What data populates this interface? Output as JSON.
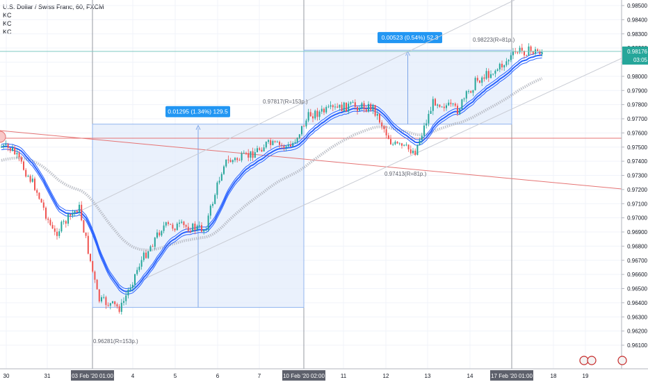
{
  "header": {
    "title": "U.S. Dollar / Swiss Franc, 60, FXCM",
    "indicators": [
      "KC",
      "KC",
      "KC"
    ]
  },
  "price_axis": {
    "ticks": [
      "0.98500",
      "0.98400",
      "0.98300",
      "0.98200",
      "0.98100",
      "0.98000",
      "0.97900",
      "0.97800",
      "0.97700",
      "0.97600",
      "0.97500",
      "0.97400",
      "0.97300",
      "0.97200",
      "0.97100",
      "0.97000",
      "0.96900",
      "0.96800",
      "0.96700",
      "0.96600",
      "0.96500",
      "0.96400",
      "0.96300",
      "0.96200",
      "0.96100"
    ],
    "current_price": "0.98176",
    "countdown": "03:05"
  },
  "time_axis": {
    "ticks": [
      "30",
      "31",
      "4",
      "5",
      "6",
      "7",
      "11",
      "12",
      "13",
      "14",
      "18",
      "19"
    ],
    "highlighted": [
      "03 Feb '20  01:00",
      "10 Feb '20  02:00",
      "17 Feb '20  01:00"
    ]
  },
  "measurements": [
    {
      "label": "0.01295 (1.34%) 129.5"
    },
    {
      "label": "0.00523 (0.54%) 52.3"
    }
  ],
  "annotations": [
    {
      "text": "0.96281(R=153p.)"
    },
    {
      "text": "0.97817(R=153p.)"
    },
    {
      "text": "0.97413(R=81p.)"
    },
    {
      "text": "0.98223(R=81p.)"
    }
  ],
  "colors": {
    "up": "#26a69a",
    "down": "#ef5350",
    "kc": "#2962ff",
    "ma": "#b2b5be",
    "price_badge": "#26a69a",
    "price_line": "#26a69a",
    "trend_line": "#e57373",
    "channel": "#c9ccd4",
    "measure_fill": "#e3ecfb",
    "measure_label": "#2196f3"
  },
  "chart_data": {
    "type": "candlestick",
    "title": "U.S. Dollar / Swiss Franc, 60, FXCM",
    "ylim": [
      0.961,
      0.985
    ],
    "x": [
      "30",
      "31",
      "03 Feb '20",
      "4",
      "5",
      "6",
      "7",
      "10 Feb '20",
      "11",
      "12",
      "13",
      "14",
      "17 Feb '20",
      "18",
      "19"
    ],
    "close_path": [
      {
        "x": "30",
        "y": 0.9748
      },
      {
        "x": "30",
        "y": 0.9722
      },
      {
        "x": "31",
        "y": 0.9688
      },
      {
        "x": "31",
        "y": 0.9708
      },
      {
        "x": "03 Feb '20",
        "y": 0.9642
      },
      {
        "x": "03 Feb '20",
        "y": 0.9636
      },
      {
        "x": "4",
        "y": 0.9667
      },
      {
        "x": "4",
        "y": 0.9694
      },
      {
        "x": "5",
        "y": 0.9694
      },
      {
        "x": "5",
        "y": 0.9692
      },
      {
        "x": "6",
        "y": 0.9739
      },
      {
        "x": "6",
        "y": 0.9743
      },
      {
        "x": "7",
        "y": 0.9752
      },
      {
        "x": "7",
        "y": 0.975
      },
      {
        "x": "10 Feb '20",
        "y": 0.9773
      },
      {
        "x": "11",
        "y": 0.9779
      },
      {
        "x": "11",
        "y": 0.9778
      },
      {
        "x": "12",
        "y": 0.9752
      },
      {
        "x": "12",
        "y": 0.9747
      },
      {
        "x": "13",
        "y": 0.9783
      },
      {
        "x": "13",
        "y": 0.9776
      },
      {
        "x": "14",
        "y": 0.9797
      },
      {
        "x": "14",
        "y": 0.9806
      },
      {
        "x": "17 Feb '20",
        "y": 0.9818
      },
      {
        "x": "18",
        "y": 0.9817
      }
    ]
  }
}
